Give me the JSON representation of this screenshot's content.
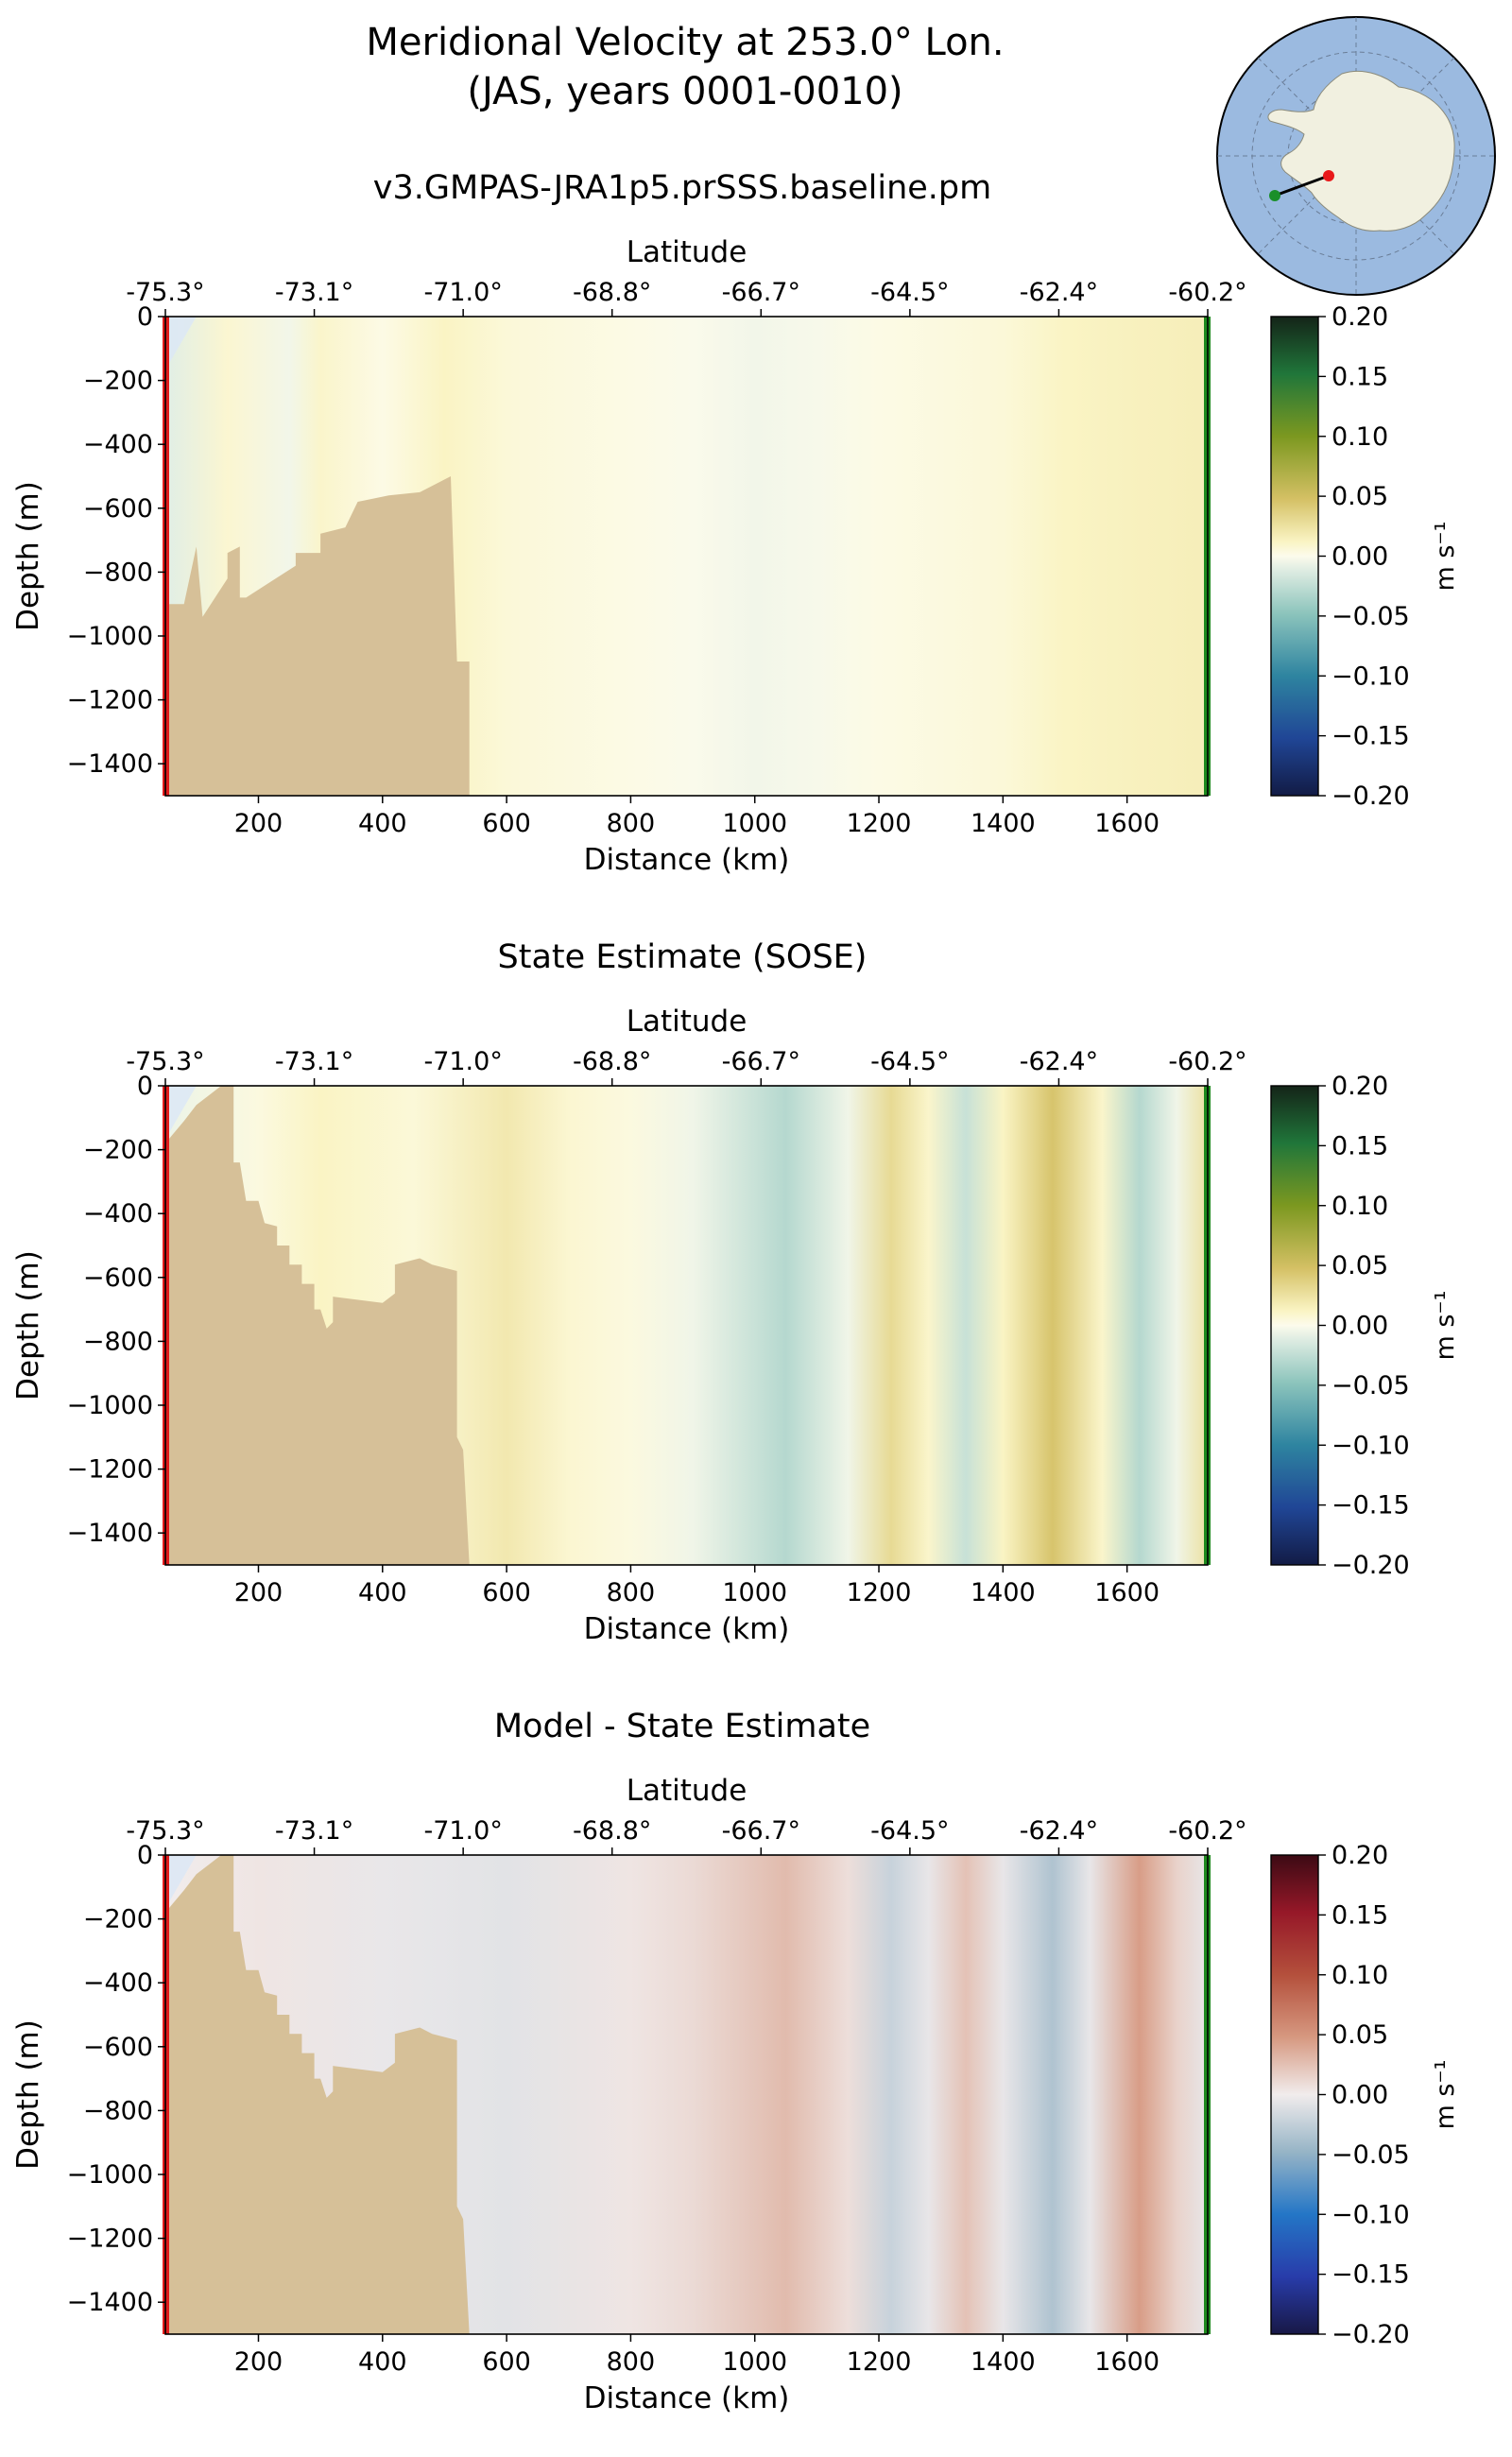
{
  "figure": {
    "title_line1": "Meridional Velocity at 253.0° Lon.",
    "title_line2": "(JAS, years 0001-0010)"
  },
  "inset_map": {
    "ocean_color": "#9bbae0",
    "land_color": "#f1f0e0",
    "start_marker_color": "#e8191a",
    "end_marker_color": "#1a8f2a"
  },
  "colors": {
    "bathymetry": "#d6c098",
    "start_bar": "#e01b1b",
    "end_bar": "#1e8a1e",
    "no_data": "#dce8f6"
  },
  "chart_data": [
    {
      "type": "heatmap",
      "title": "v3.GMPAS-JRA1p5.prSSS.baseline.pm",
      "xlabel": "Distance (km)",
      "ylabel": "Depth (m)",
      "secondary_xlabel": "Latitude",
      "xlim": [
        50,
        1730
      ],
      "ylim": [
        -1500,
        0
      ],
      "x_ticks": [
        200,
        400,
        600,
        800,
        1000,
        1200,
        1400,
        1600
      ],
      "y_ticks": [
        0,
        -200,
        -400,
        -600,
        -800,
        -1000,
        -1200,
        -1400
      ],
      "latitude_ticks": [
        "-75.3°",
        "-73.1°",
        "-71.0°",
        "-68.8°",
        "-66.7°",
        "-64.5°",
        "-62.4°",
        "-60.2°"
      ],
      "colormap": "tarn",
      "colorbar_label": "m s⁻¹",
      "colorbar_ticks": [
        0.2,
        0.15,
        0.1,
        0.05,
        0.0,
        -0.05,
        -0.1,
        -0.15,
        -0.2
      ],
      "vlim": [
        -0.2,
        0.2
      ],
      "columns": [
        {
          "x": 60,
          "v": -0.01
        },
        {
          "x": 150,
          "v": 0.008
        },
        {
          "x": 250,
          "v": -0.004
        },
        {
          "x": 300,
          "v": 0.01
        },
        {
          "x": 400,
          "v": 0.002
        },
        {
          "x": 500,
          "v": 0.012
        },
        {
          "x": 600,
          "v": 0.006
        },
        {
          "x": 700,
          "v": 0.004
        },
        {
          "x": 800,
          "v": 0.002
        },
        {
          "x": 900,
          "v": -0.001
        },
        {
          "x": 1000,
          "v": -0.004
        },
        {
          "x": 1100,
          "v": -0.002
        },
        {
          "x": 1200,
          "v": 0.002
        },
        {
          "x": 1300,
          "v": 0.004
        },
        {
          "x": 1400,
          "v": 0.006
        },
        {
          "x": 1500,
          "v": 0.012
        },
        {
          "x": 1600,
          "v": 0.014
        },
        {
          "x": 1730,
          "v": 0.016
        }
      ],
      "bathymetry": [
        [
          50,
          -1500
        ],
        [
          50,
          -900
        ],
        [
          80,
          -900
        ],
        [
          100,
          -720
        ],
        [
          110,
          -940
        ],
        [
          150,
          -820
        ],
        [
          150,
          -740
        ],
        [
          170,
          -720
        ],
        [
          170,
          -880
        ],
        [
          180,
          -880
        ],
        [
          220,
          -830
        ],
        [
          260,
          -780
        ],
        [
          260,
          -740
        ],
        [
          300,
          -740
        ],
        [
          300,
          -680
        ],
        [
          340,
          -660
        ],
        [
          360,
          -580
        ],
        [
          410,
          -560
        ],
        [
          460,
          -550
        ],
        [
          470,
          -540
        ],
        [
          500,
          -510
        ],
        [
          510,
          -500
        ],
        [
          520,
          -1080
        ],
        [
          540,
          -1080
        ],
        [
          540,
          -1500
        ]
      ]
    },
    {
      "type": "heatmap",
      "title": "State Estimate (SOSE)",
      "xlabel": "Distance (km)",
      "ylabel": "Depth (m)",
      "secondary_xlabel": "Latitude",
      "xlim": [
        50,
        1730
      ],
      "ylim": [
        -1500,
        0
      ],
      "x_ticks": [
        200,
        400,
        600,
        800,
        1000,
        1200,
        1400,
        1600
      ],
      "y_ticks": [
        0,
        -200,
        -400,
        -600,
        -800,
        -1000,
        -1200,
        -1400
      ],
      "latitude_ticks": [
        "-75.3°",
        "-73.1°",
        "-71.0°",
        "-68.8°",
        "-66.7°",
        "-64.5°",
        "-62.4°",
        "-60.2°"
      ],
      "colormap": "tarn",
      "colorbar_label": "m s⁻¹",
      "colorbar_ticks": [
        0.2,
        0.15,
        0.1,
        0.05,
        0.0,
        -0.05,
        -0.1,
        -0.15,
        -0.2
      ],
      "vlim": [
        -0.2,
        0.2
      ],
      "columns": [
        {
          "x": 60,
          "v": -0.006
        },
        {
          "x": 200,
          "v": 0.004
        },
        {
          "x": 300,
          "v": 0.012
        },
        {
          "x": 450,
          "v": 0.006
        },
        {
          "x": 600,
          "v": 0.02
        },
        {
          "x": 700,
          "v": 0.008
        },
        {
          "x": 800,
          "v": 0.004
        },
        {
          "x": 900,
          "v": -0.005
        },
        {
          "x": 1050,
          "v": -0.03
        },
        {
          "x": 1150,
          "v": -0.005
        },
        {
          "x": 1220,
          "v": 0.03
        },
        {
          "x": 1280,
          "v": 0.01
        },
        {
          "x": 1340,
          "v": -0.022
        },
        {
          "x": 1400,
          "v": 0.012
        },
        {
          "x": 1480,
          "v": 0.045
        },
        {
          "x": 1560,
          "v": 0.01
        },
        {
          "x": 1620,
          "v": -0.03
        },
        {
          "x": 1680,
          "v": -0.005
        },
        {
          "x": 1730,
          "v": 0.025
        }
      ],
      "bathymetry": [
        [
          50,
          -1500
        ],
        [
          50,
          -180
        ],
        [
          80,
          -110
        ],
        [
          100,
          -60
        ],
        [
          120,
          -30
        ],
        [
          140,
          0
        ],
        [
          160,
          0
        ],
        [
          160,
          -240
        ],
        [
          170,
          -240
        ],
        [
          180,
          -360
        ],
        [
          200,
          -360
        ],
        [
          210,
          -430
        ],
        [
          230,
          -440
        ],
        [
          230,
          -500
        ],
        [
          250,
          -500
        ],
        [
          250,
          -560
        ],
        [
          270,
          -560
        ],
        [
          270,
          -620
        ],
        [
          290,
          -620
        ],
        [
          290,
          -700
        ],
        [
          300,
          -700
        ],
        [
          310,
          -760
        ],
        [
          320,
          -740
        ],
        [
          320,
          -660
        ],
        [
          400,
          -680
        ],
        [
          420,
          -650
        ],
        [
          420,
          -560
        ],
        [
          460,
          -540
        ],
        [
          480,
          -560
        ],
        [
          520,
          -580
        ],
        [
          520,
          -1100
        ],
        [
          530,
          -1140
        ],
        [
          540,
          -1500
        ]
      ]
    },
    {
      "type": "heatmap",
      "title": "Model - State Estimate",
      "xlabel": "Distance (km)",
      "ylabel": "Depth (m)",
      "secondary_xlabel": "Latitude",
      "xlim": [
        50,
        1730
      ],
      "ylim": [
        -1500,
        0
      ],
      "x_ticks": [
        200,
        400,
        600,
        800,
        1000,
        1200,
        1400,
        1600
      ],
      "y_ticks": [
        0,
        -200,
        -400,
        -600,
        -800,
        -1000,
        -1200,
        -1400
      ],
      "latitude_ticks": [
        "-75.3°",
        "-73.1°",
        "-71.0°",
        "-68.8°",
        "-66.7°",
        "-64.5°",
        "-62.4°",
        "-60.2°"
      ],
      "colormap": "balance",
      "colorbar_label": "m s⁻¹",
      "colorbar_ticks": [
        0.2,
        0.15,
        0.1,
        0.05,
        0.0,
        -0.05,
        -0.1,
        -0.15,
        -0.2
      ],
      "vlim": [
        -0.2,
        0.2
      ],
      "columns": [
        {
          "x": 60,
          "v": 0.0
        },
        {
          "x": 200,
          "v": 0.004
        },
        {
          "x": 400,
          "v": -0.004
        },
        {
          "x": 600,
          "v": -0.008
        },
        {
          "x": 800,
          "v": 0.004
        },
        {
          "x": 900,
          "v": 0.01
        },
        {
          "x": 1050,
          "v": 0.028
        },
        {
          "x": 1150,
          "v": 0.008
        },
        {
          "x": 1220,
          "v": -0.022
        },
        {
          "x": 1280,
          "v": -0.005
        },
        {
          "x": 1340,
          "v": 0.024
        },
        {
          "x": 1400,
          "v": -0.005
        },
        {
          "x": 1480,
          "v": -0.035
        },
        {
          "x": 1540,
          "v": -0.005
        },
        {
          "x": 1620,
          "v": 0.045
        },
        {
          "x": 1680,
          "v": 0.015
        },
        {
          "x": 1730,
          "v": -0.005
        }
      ],
      "bathymetry": [
        [
          50,
          -1500
        ],
        [
          50,
          -180
        ],
        [
          80,
          -110
        ],
        [
          100,
          -60
        ],
        [
          120,
          -30
        ],
        [
          140,
          0
        ],
        [
          160,
          0
        ],
        [
          160,
          -240
        ],
        [
          170,
          -240
        ],
        [
          180,
          -360
        ],
        [
          200,
          -360
        ],
        [
          210,
          -430
        ],
        [
          230,
          -440
        ],
        [
          230,
          -500
        ],
        [
          250,
          -500
        ],
        [
          250,
          -560
        ],
        [
          270,
          -560
        ],
        [
          270,
          -620
        ],
        [
          290,
          -620
        ],
        [
          290,
          -700
        ],
        [
          300,
          -700
        ],
        [
          310,
          -760
        ],
        [
          320,
          -740
        ],
        [
          320,
          -660
        ],
        [
          400,
          -680
        ],
        [
          420,
          -650
        ],
        [
          420,
          -560
        ],
        [
          460,
          -540
        ],
        [
          480,
          -560
        ],
        [
          520,
          -580
        ],
        [
          520,
          -1100
        ],
        [
          530,
          -1140
        ],
        [
          540,
          -1500
        ]
      ]
    }
  ]
}
